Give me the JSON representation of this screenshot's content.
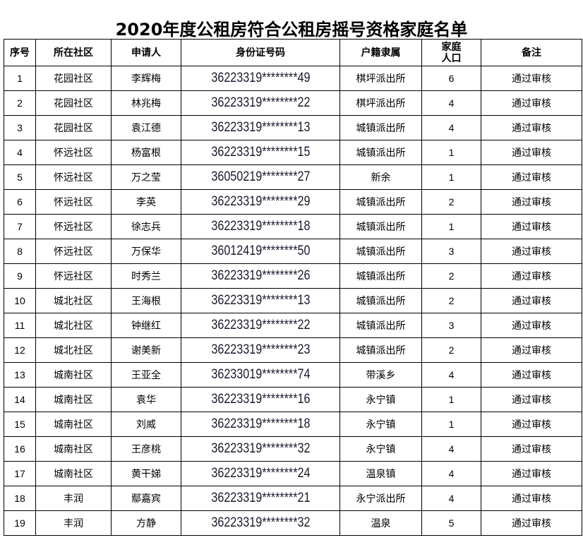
{
  "title": "2020年度公租房符合公租房摇号资格家庭名单",
  "headers": {
    "seq": "序号",
    "community": "所在社区",
    "applicant": "申请人",
    "id_number": "身份证号码",
    "household": "户籍隶属",
    "family_size_line1": "家庭",
    "family_size_line2": "人口",
    "remark": "备注"
  },
  "rows": [
    {
      "seq": "1",
      "community": "花园社区",
      "applicant": "李辉梅",
      "id_number": "36223319********49",
      "household": "棋坪派出所",
      "family_size": "6",
      "remark": "通过审核"
    },
    {
      "seq": "2",
      "community": "花园社区",
      "applicant": "林兆梅",
      "id_number": "36223319********22",
      "household": "棋坪派出所",
      "family_size": "4",
      "remark": "通过审核"
    },
    {
      "seq": "3",
      "community": "花园社区",
      "applicant": "袁江德",
      "id_number": "36223319********13",
      "household": "城镇派出所",
      "family_size": "4",
      "remark": "通过审核"
    },
    {
      "seq": "4",
      "community": "怀远社区",
      "applicant": "杨富根",
      "id_number": "36223319********15",
      "household": "城镇派出所",
      "family_size": "1",
      "remark": "通过审核"
    },
    {
      "seq": "5",
      "community": "怀远社区",
      "applicant": "万之莹",
      "id_number": "36050219********27",
      "household": "新余",
      "family_size": "1",
      "remark": "通过审核"
    },
    {
      "seq": "6",
      "community": "怀远社区",
      "applicant": "李英",
      "id_number": "36223319********29",
      "household": "城镇派出所",
      "family_size": "2",
      "remark": "通过审核"
    },
    {
      "seq": "7",
      "community": "怀远社区",
      "applicant": "徐志兵",
      "id_number": "36223319********18",
      "household": "城镇派出所",
      "family_size": "1",
      "remark": "通过审核"
    },
    {
      "seq": "8",
      "community": "怀远社区",
      "applicant": "万保华",
      "id_number": "36012419********50",
      "household": "城镇派出所",
      "family_size": "3",
      "remark": "通过审核"
    },
    {
      "seq": "9",
      "community": "怀远社区",
      "applicant": "时秀兰",
      "id_number": "36223319********26",
      "household": "城镇派出所",
      "family_size": "2",
      "remark": "通过审核"
    },
    {
      "seq": "10",
      "community": "城北社区",
      "applicant": "王海根",
      "id_number": "36223319********13",
      "household": "城镇派出所",
      "family_size": "2",
      "remark": "通过审核"
    },
    {
      "seq": "11",
      "community": "城北社区",
      "applicant": "钟继红",
      "id_number": "36223319********22",
      "household": "城镇派出所",
      "family_size": "3",
      "remark": "通过审核"
    },
    {
      "seq": "12",
      "community": "城北社区",
      "applicant": "谢美新",
      "id_number": "36223319********23",
      "household": "城镇派出所",
      "family_size": "2",
      "remark": "通过审核"
    },
    {
      "seq": "13",
      "community": "城南社区",
      "applicant": "王亚全",
      "id_number": "36233019********74",
      "household": "带溪乡",
      "family_size": "4",
      "remark": "通过审核"
    },
    {
      "seq": "14",
      "community": "城南社区",
      "applicant": "袁华",
      "id_number": "36223319********16",
      "household": "永宁镇",
      "family_size": "1",
      "remark": "通过审核"
    },
    {
      "seq": "15",
      "community": "城南社区",
      "applicant": "刘威",
      "id_number": "36223319********18",
      "household": "永宁镇",
      "family_size": "1",
      "remark": "通过审核"
    },
    {
      "seq": "16",
      "community": "城南社区",
      "applicant": "王彦桃",
      "id_number": "36223319********32",
      "household": "永宁镇",
      "family_size": "4",
      "remark": "通过审核"
    },
    {
      "seq": "17",
      "community": "城南社区",
      "applicant": "黄干娣",
      "id_number": "36223319********24",
      "household": "温泉镇",
      "family_size": "4",
      "remark": "通过审核"
    },
    {
      "seq": "18",
      "community": "丰润",
      "applicant": "鄢嘉宾",
      "id_number": "36223319********21",
      "household": "永宁派出所",
      "family_size": "4",
      "remark": "通过审核"
    },
    {
      "seq": "19",
      "community": "丰润",
      "applicant": "方静",
      "id_number": "36223319********32",
      "household": "温泉",
      "family_size": "5",
      "remark": "通过审核"
    }
  ]
}
